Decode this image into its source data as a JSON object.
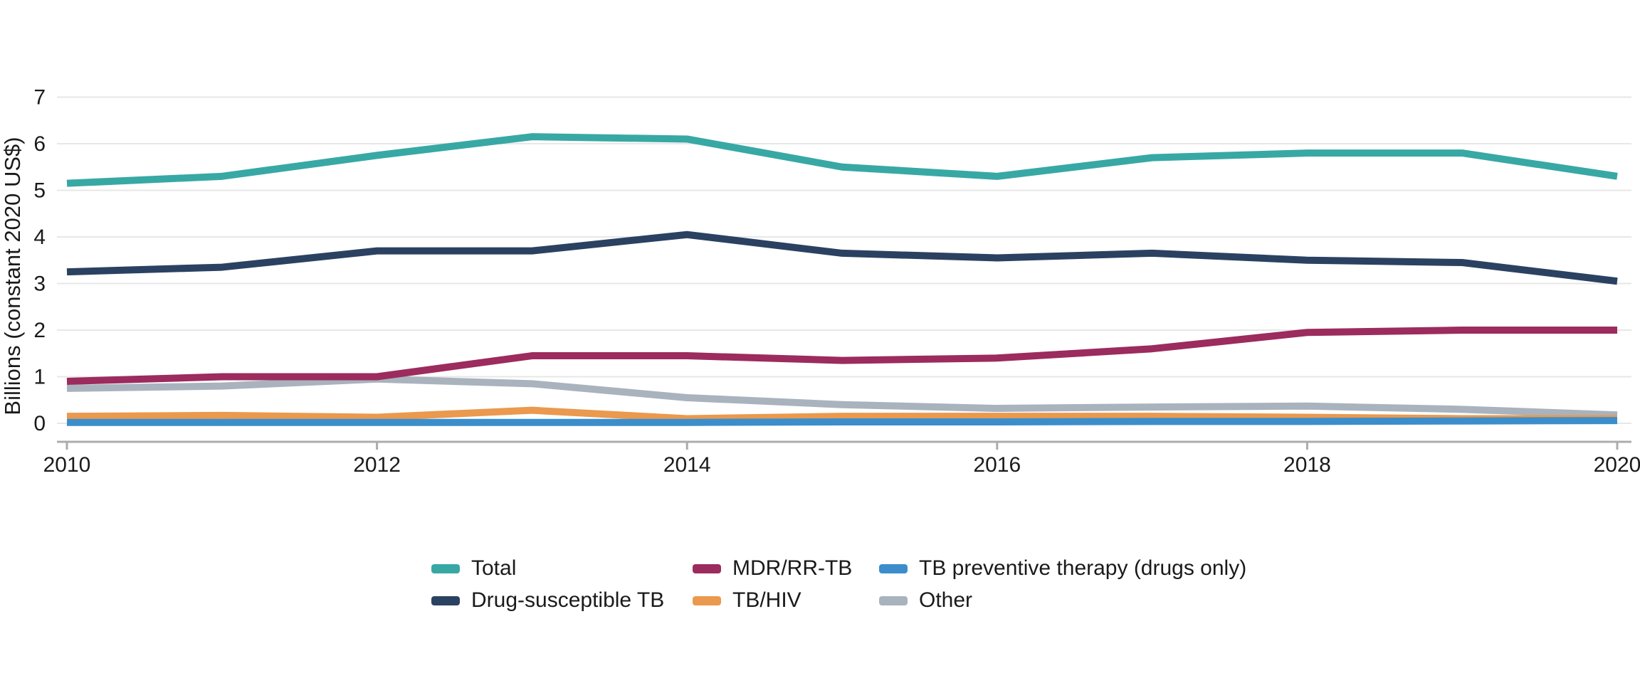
{
  "chart_data": {
    "type": "line",
    "ylabel": "Billions (constant 2020 US$)",
    "xlabel": "",
    "x": [
      2010,
      2011,
      2012,
      2013,
      2014,
      2015,
      2016,
      2017,
      2018,
      2019,
      2020
    ],
    "xticks": [
      2010,
      2012,
      2014,
      2016,
      2018,
      2020
    ],
    "yticks": [
      0,
      1,
      2,
      3,
      4,
      5,
      6,
      7
    ],
    "xlim": [
      2010,
      2020
    ],
    "ylim": [
      0,
      7
    ],
    "grid": "horizontal",
    "legend_position": "bottom-center",
    "series": [
      {
        "name": "Total",
        "color": "#38A8A5",
        "values": [
          5.15,
          5.3,
          5.75,
          6.15,
          6.1,
          5.5,
          5.3,
          5.7,
          5.8,
          5.8,
          5.3
        ]
      },
      {
        "name": "Drug-susceptible TB",
        "color": "#2B4161",
        "values": [
          3.25,
          3.35,
          3.7,
          3.7,
          4.05,
          3.65,
          3.55,
          3.65,
          3.5,
          3.45,
          3.05
        ]
      },
      {
        "name": "MDR/RR-TB",
        "color": "#9C2B5E",
        "values": [
          0.9,
          1.0,
          1.0,
          1.45,
          1.45,
          1.35,
          1.4,
          1.6,
          1.95,
          2.0,
          2.0
        ]
      },
      {
        "name": "TB/HIV",
        "color": "#EA994E",
        "values": [
          0.15,
          0.17,
          0.13,
          0.28,
          0.1,
          0.15,
          0.15,
          0.15,
          0.13,
          0.1,
          0.1
        ]
      },
      {
        "name": "TB preventive therapy (drugs only)",
        "color": "#3B8ECB",
        "values": [
          0.02,
          0.02,
          0.02,
          0.02,
          0.02,
          0.03,
          0.03,
          0.04,
          0.04,
          0.05,
          0.06
        ]
      },
      {
        "name": "Other",
        "color": "#A9B3BE",
        "values": [
          0.75,
          0.8,
          0.95,
          0.85,
          0.55,
          0.4,
          0.32,
          0.35,
          0.37,
          0.3,
          0.18
        ]
      }
    ],
    "draw_order": [
      "Other",
      "TB/HIV",
      "MDR/RR-TB",
      "Drug-susceptible TB",
      "Total",
      "TB preventive therapy (drugs only)"
    ]
  },
  "legend": {
    "items": [
      {
        "label": "Total",
        "color": "#38A8A5"
      },
      {
        "label": "MDR/RR-TB",
        "color": "#9C2B5E"
      },
      {
        "label": "TB preventive therapy (drugs only)",
        "color": "#3B8ECB"
      },
      {
        "label": "Drug-susceptible TB",
        "color": "#2B4161"
      },
      {
        "label": "TB/HIV",
        "color": "#EA994E"
      },
      {
        "label": "Other",
        "color": "#A9B3BE"
      }
    ]
  },
  "colors": {
    "background": "#FFFFFF",
    "gridline": "#E7E7E7",
    "axis_line": "#ACACAC",
    "text": "#1A1A1A"
  }
}
